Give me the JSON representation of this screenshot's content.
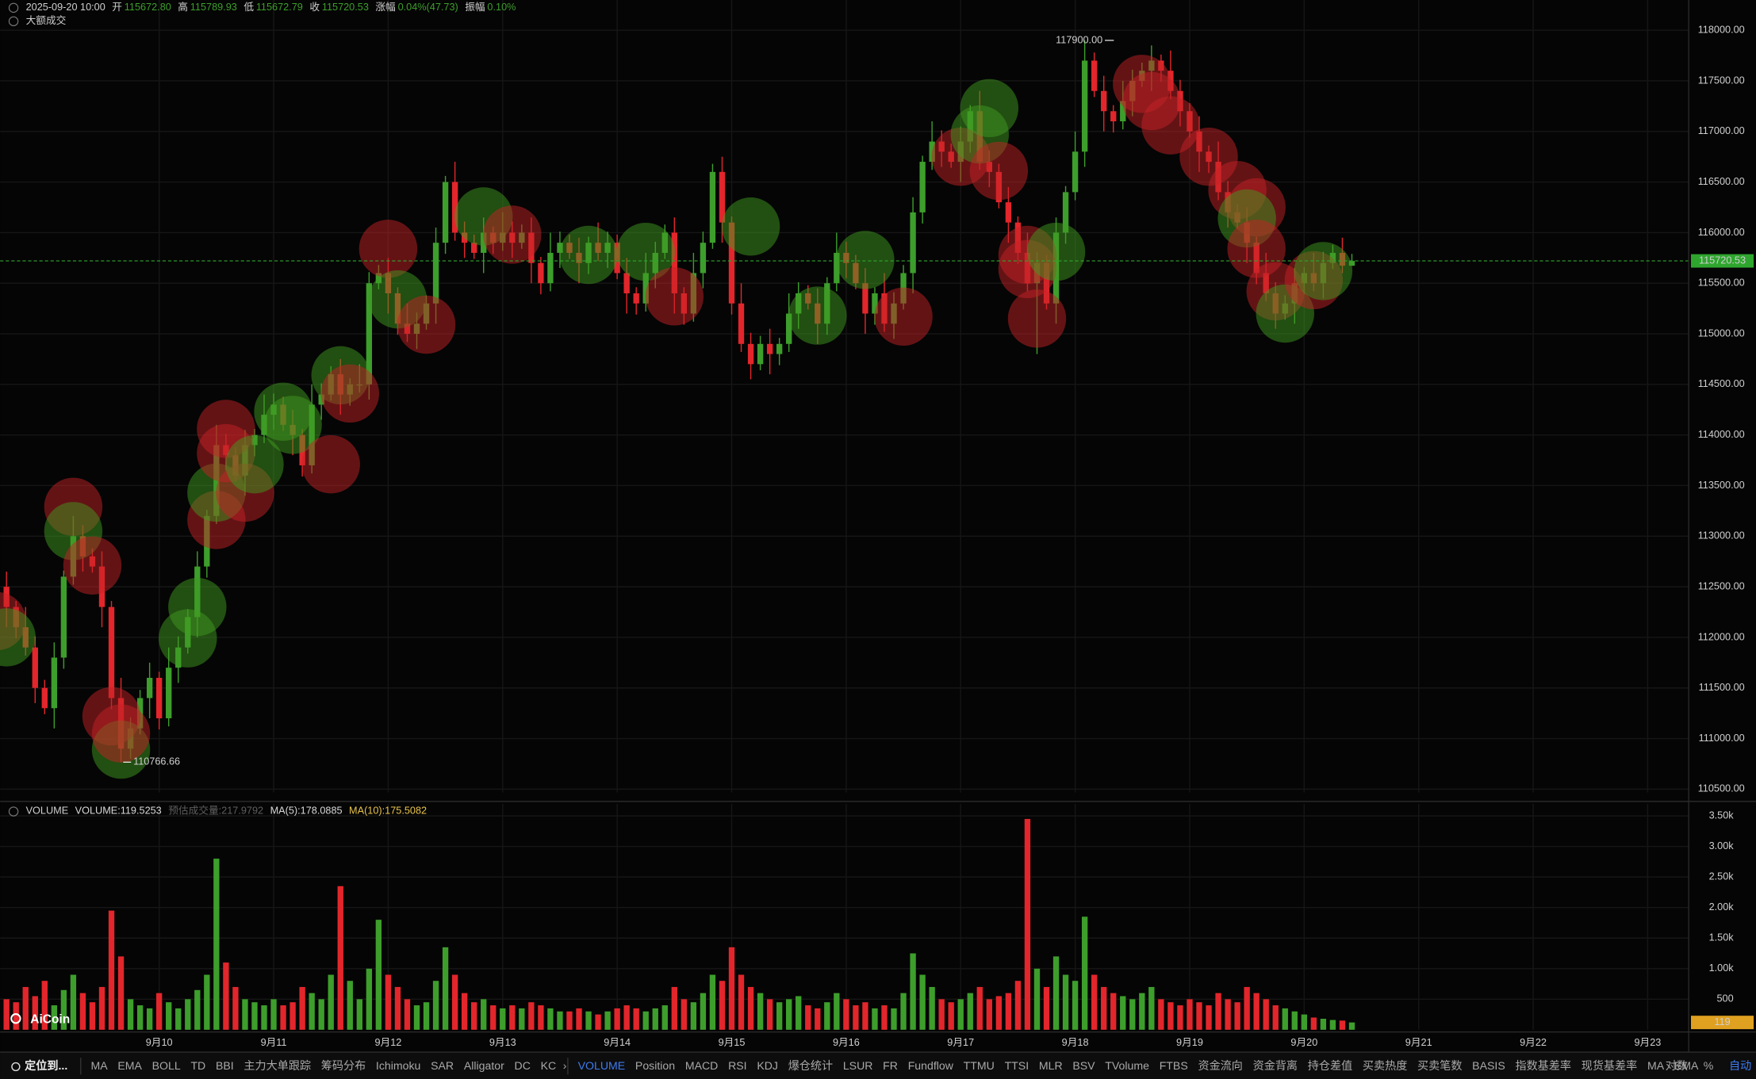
{
  "chart_data": {
    "type": "candlestick",
    "header": {
      "time": "2025-09-20 10:00",
      "items": [
        {
          "label": "开",
          "value": "115672.80"
        },
        {
          "label": "高",
          "value": "115789.93"
        },
        {
          "label": "低",
          "value": "115672.79"
        },
        {
          "label": "收",
          "value": "115720.53"
        },
        {
          "label": "涨幅",
          "value": "0.04%(47.73)"
        },
        {
          "label": "振幅",
          "value": "0.10%"
        }
      ]
    },
    "subheader": "大额成交",
    "up_color": "#3d9e2c",
    "down_color": "#e2262b",
    "grid": true,
    "last_price_color": "#2ea62e",
    "xlim": [
      0.33,
      177.3
    ],
    "xticks": [
      {
        "value": 17,
        "label": "9月10"
      },
      {
        "value": 29,
        "label": "9月11"
      },
      {
        "value": 41,
        "label": "9月12"
      },
      {
        "value": 53,
        "label": "9月13"
      },
      {
        "value": 65,
        "label": "9月14"
      },
      {
        "value": 77,
        "label": "9月15"
      },
      {
        "value": 89,
        "label": "9月16"
      },
      {
        "value": 101,
        "label": "9月17"
      },
      {
        "value": 113,
        "label": "9月18"
      },
      {
        "value": 125,
        "label": "9月19"
      },
      {
        "value": 137,
        "label": "9月20"
      },
      {
        "value": 149,
        "label": "9月21"
      },
      {
        "value": 161,
        "label": "9月22"
      },
      {
        "value": 173,
        "label": "9月23"
      }
    ],
    "ylim": [
      110467,
      118299
    ],
    "yticks": [
      {
        "value": 110500,
        "label": "110500.00"
      },
      {
        "value": 111000,
        "label": "111000.00"
      },
      {
        "value": 111500,
        "label": "111500.00"
      },
      {
        "value": 112000,
        "label": "112000.00"
      },
      {
        "value": 112500,
        "label": "112500.00"
      },
      {
        "value": 113000,
        "label": "113000.00"
      },
      {
        "value": 113500,
        "label": "113500.00"
      },
      {
        "value": 114000,
        "label": "114000.00"
      },
      {
        "value": 114500,
        "label": "114500.00"
      },
      {
        "value": 115000,
        "label": "115000.00"
      },
      {
        "value": 115500,
        "label": "115500.00"
      },
      {
        "value": 116000,
        "label": "116000.00"
      },
      {
        "value": 116500,
        "label": "116500.00"
      },
      {
        "value": 117000,
        "label": "117000.00"
      },
      {
        "value": 117500,
        "label": "117500.00"
      },
      {
        "value": 118000,
        "label": "118000.00"
      }
    ],
    "last_price_label": "115720.53",
    "max_label": "117900.00",
    "min_label": "110766.66",
    "open": [
      112600,
      112500,
      112300,
      112100,
      111900,
      111500,
      111300,
      111800,
      112600,
      113000,
      112800,
      112700,
      112300,
      111400,
      110900,
      111100,
      111400,
      111600,
      111200,
      111700,
      111900,
      112200,
      112700,
      113200,
      113900,
      113800,
      113600,
      113900,
      114000,
      114200,
      114300,
      114100,
      114000,
      113700,
      114300,
      114400,
      114600,
      114400,
      114500,
      114500,
      115500,
      115600,
      115400,
      115100,
      115000,
      115100,
      115300,
      115900,
      116500,
      116000,
      115900,
      115800,
      116000,
      115900,
      116000,
      115900,
      116000,
      115700,
      115500,
      115800,
      115900,
      115800,
      115700,
      115900,
      115800,
      115900,
      115600,
      115400,
      115300,
      115600,
      115800,
      116000,
      115400,
      115200,
      115600,
      115900,
      116600,
      116100,
      115300,
      114900,
      114700,
      114900,
      114800,
      114900,
      115200,
      115400,
      115300,
      115100,
      115500,
      115800,
      115700,
      115500,
      115200,
      115400,
      115100,
      115300,
      115600,
      116200,
      116700,
      116900,
      116800,
      116700,
      116900,
      117200,
      116700,
      116600,
      116300,
      116100,
      115800,
      115500,
      115700,
      115300,
      116000,
      116400,
      116800,
      117700,
      117400,
      117200,
      117100,
      117300,
      117500,
      117600,
      117700,
      117600,
      117400,
      117200,
      117000,
      116800,
      116700,
      116400,
      116200,
      116100,
      115900,
      115600,
      115400,
      115200,
      115300,
      115500,
      115600,
      115500,
      115700,
      115800,
      115672.8
    ],
    "high": [
      112680,
      112650,
      112360,
      112300,
      112010,
      111580,
      111950,
      112660,
      113200,
      113110,
      112880,
      112850,
      112360,
      111600,
      111210,
      111480,
      111750,
      111660,
      111900,
      112010,
      112280,
      112850,
      113260,
      114100,
      114010,
      113880,
      114050,
      114060,
      114400,
      114410,
      114380,
      114250,
      114060,
      114500,
      114510,
      114680,
      114750,
      114560,
      114700,
      115610,
      115680,
      115750,
      115460,
      115300,
      115210,
      115380,
      116050,
      116560,
      116700,
      116110,
      115980,
      116150,
      116060,
      116200,
      116110,
      116080,
      116150,
      115760,
      116000,
      116010,
      115980,
      115950,
      115960,
      116100,
      116010,
      115980,
      115750,
      115460,
      115800,
      115910,
      116080,
      116150,
      115460,
      115800,
      116010,
      116680,
      116750,
      116160,
      115500,
      115010,
      114980,
      115050,
      114960,
      115400,
      115510,
      115480,
      115450,
      115560,
      116000,
      115910,
      115780,
      115650,
      115460,
      115600,
      115410,
      115680,
      116350,
      116760,
      117100,
      117010,
      116880,
      117050,
      117260,
      117400,
      116810,
      116680,
      116450,
      116160,
      116000,
      115810,
      115780,
      116150,
      116460,
      117000,
      117900,
      117780,
      117550,
      117260,
      117500,
      117610,
      117680,
      117850,
      117760,
      117800,
      117510,
      117280,
      117150,
      116860,
      116900,
      116510,
      116280,
      116250,
      115960,
      115800,
      115510,
      115380,
      115650,
      115660,
      115800,
      115810,
      115880,
      115950,
      115789.93
    ],
    "low": [
      112440,
      112100,
      111990,
      111820,
      111350,
      111240,
      111100,
      111690,
      112520,
      112650,
      112640,
      112100,
      111290,
      110766.66,
      110800,
      111040,
      111200,
      111090,
      111120,
      111550,
      111840,
      112000,
      112590,
      113120,
      113650,
      113540,
      113400,
      113790,
      113920,
      114050,
      114040,
      113800,
      113590,
      113620,
      114150,
      114340,
      114200,
      114290,
      114420,
      114350,
      115440,
      115200,
      114990,
      114920,
      114850,
      115040,
      115100,
      115790,
      115920,
      115750,
      115740,
      115600,
      115790,
      115820,
      115750,
      115840,
      115500,
      115390,
      115420,
      115650,
      115740,
      115500,
      115590,
      115720,
      115650,
      115540,
      115200,
      115190,
      115220,
      115450,
      115740,
      115200,
      115090,
      115120,
      115450,
      115840,
      115900,
      115190,
      114820,
      114550,
      114640,
      114600,
      114690,
      114820,
      115050,
      115240,
      114900,
      114990,
      115420,
      115550,
      115440,
      115000,
      115090,
      115020,
      114950,
      115240,
      115400,
      116090,
      116620,
      116650,
      116640,
      116500,
      116790,
      116620,
      116450,
      116240,
      115900,
      115690,
      115420,
      114800,
      115240,
      115100,
      115890,
      116320,
      116650,
      117340,
      117000,
      116990,
      117020,
      117150,
      117440,
      117400,
      117490,
      117320,
      117050,
      116940,
      116600,
      116590,
      116320,
      116050,
      116040,
      115700,
      115490,
      115320,
      115050,
      115140,
      115100,
      115390,
      115420,
      115350,
      115640,
      115600,
      115672.79
    ],
    "close": [
      112500,
      112300,
      112100,
      111900,
      111500,
      111300,
      111800,
      112600,
      113000,
      112800,
      112700,
      112300,
      111400,
      110900,
      111100,
      111400,
      111600,
      111200,
      111700,
      111900,
      112200,
      112700,
      113200,
      113900,
      113800,
      113600,
      113900,
      114000,
      114200,
      114300,
      114100,
      114000,
      113700,
      114300,
      114400,
      114600,
      114400,
      114500,
      114500,
      115500,
      115600,
      115400,
      115100,
      115000,
      115100,
      115300,
      115900,
      116500,
      116000,
      115900,
      115800,
      116000,
      115900,
      116000,
      115900,
      116000,
      115700,
      115500,
      115800,
      115900,
      115800,
      115700,
      115900,
      115800,
      115900,
      115600,
      115400,
      115300,
      115600,
      115800,
      116000,
      115400,
      115200,
      115600,
      115900,
      116600,
      116100,
      115300,
      114900,
      114700,
      114900,
      114800,
      114900,
      115200,
      115400,
      115300,
      115100,
      115500,
      115800,
      115700,
      115500,
      115200,
      115400,
      115100,
      115300,
      115600,
      116200,
      116700,
      116900,
      116800,
      116700,
      116900,
      117200,
      116700,
      116600,
      116300,
      116100,
      115800,
      115500,
      115700,
      115300,
      116000,
      116400,
      116800,
      117700,
      117400,
      117200,
      117100,
      117300,
      117500,
      117600,
      117700,
      117600,
      117400,
      117200,
      117000,
      116800,
      116700,
      116400,
      116200,
      116100,
      115900,
      115600,
      115400,
      115200,
      115300,
      115500,
      115600,
      115500,
      115700,
      115800,
      115672.8,
      115720.53
    ],
    "bubbles": {
      "buy_color": "#3f9a1f",
      "sell_color": "#c42226",
      "x": [
        0,
        1,
        8,
        8,
        10,
        12,
        13,
        13,
        20,
        21,
        23,
        23,
        24,
        26,
        24,
        27,
        30,
        31,
        35,
        36,
        37,
        41,
        42,
        45,
        51,
        54,
        62,
        68,
        71,
        79,
        86,
        91,
        95,
        101,
        104,
        103,
        105,
        108,
        108,
        111,
        109,
        120,
        121,
        123,
        127,
        130,
        132,
        131,
        132,
        134,
        135,
        138,
        139
      ],
      "price": [
        112160,
        112000,
        113290,
        113050,
        112710,
        111220,
        110890,
        111050,
        111990,
        112300,
        113160,
        113430,
        114060,
        113430,
        113820,
        113710,
        114230,
        114100,
        113710,
        114590,
        114410,
        115840,
        115340,
        115090,
        116160,
        115980,
        115780,
        115810,
        115370,
        116060,
        115180,
        115730,
        115170,
        116750,
        117230,
        116970,
        116610,
        115780,
        115640,
        115810,
        115150,
        117470,
        117300,
        117060,
        116750,
        116420,
        116250,
        116140,
        115840,
        115420,
        115200,
        115530,
        115620
      ],
      "side": [
        "sell",
        "buy",
        "sell",
        "buy",
        "sell",
        "sell",
        "buy",
        "sell",
        "buy",
        "buy",
        "sell",
        "buy",
        "sell",
        "sell",
        "sell",
        "buy",
        "buy",
        "buy",
        "sell",
        "buy",
        "sell",
        "sell",
        "buy",
        "sell",
        "buy",
        "sell",
        "buy",
        "buy",
        "sell",
        "buy",
        "buy",
        "buy",
        "sell",
        "sell",
        "buy",
        "buy",
        "sell",
        "sell",
        "sell",
        "buy",
        "sell",
        "sell",
        "sell",
        "sell",
        "sell",
        "sell",
        "sell",
        "buy",
        "sell",
        "sell",
        "buy",
        "sell",
        "buy"
      ]
    },
    "volume": {
      "title": "VOLUME",
      "items": [
        {
          "text": "VOLUME:119.5253",
          "color": "#d8d8d8"
        },
        {
          "text": "预估成交量:217.9792",
          "color": "#5e5e5e"
        },
        {
          "text": "MA(5):178.0885",
          "color": "#d8d8d8"
        },
        {
          "text": "MA(10):175.5082",
          "color": "#e8c34a"
        }
      ],
      "ylim": [
        0,
        3700
      ],
      "yticks": [
        500,
        {
          "value": 1000,
          "label": "1.00k"
        },
        {
          "value": 1500,
          "label": "1.50k"
        },
        {
          "value": 2000,
          "label": "2.00k"
        },
        {
          "value": 2500,
          "label": "2.50k"
        },
        {
          "value": 3000,
          "label": "3.00k"
        },
        {
          "value": 3500,
          "label": "3.50k"
        }
      ],
      "last_label": "119",
      "last_color": "#e0a020",
      "values": [
        600,
        500,
        450,
        700,
        550,
        800,
        400,
        650,
        900,
        600,
        450,
        700,
        1950,
        1200,
        500,
        400,
        350,
        600,
        450,
        350,
        500,
        650,
        900,
        2800,
        1100,
        700,
        500,
        450,
        400,
        500,
        400,
        450,
        700,
        600,
        500,
        900,
        2350,
        800,
        500,
        1000,
        1800,
        900,
        700,
        500,
        400,
        450,
        800,
        1350,
        900,
        600,
        450,
        500,
        400,
        350,
        400,
        350,
        450,
        400,
        350,
        300,
        300,
        350,
        300,
        250,
        300,
        350,
        400,
        350,
        300,
        350,
        400,
        700,
        500,
        450,
        600,
        900,
        800,
        1350,
        900,
        700,
        600,
        500,
        450,
        500,
        550,
        400,
        350,
        450,
        600,
        500,
        400,
        450,
        350,
        400,
        350,
        600,
        1250,
        900,
        700,
        500,
        450,
        500,
        600,
        700,
        500,
        550,
        600,
        800,
        3450,
        1000,
        700,
        1200,
        900,
        800,
        1850,
        900,
        700,
        600,
        550,
        500,
        600,
        700,
        500,
        450,
        400,
        500,
        450,
        400,
        600,
        500,
        450,
        700,
        600,
        500,
        400,
        350,
        300,
        250,
        200,
        180,
        160,
        150,
        119.5253
      ]
    }
  },
  "toolbar": {
    "locate": "定位到...",
    "left": [
      "MA",
      "EMA",
      "BOLL",
      "TD",
      "BBI",
      "主力大单跟踪",
      "筹码分布",
      "Ichimoku",
      "SAR",
      "Alligator",
      "DC",
      "KC"
    ],
    "right": [
      "VOLUME",
      "Position",
      "MACD",
      "RSI",
      "KDJ",
      "爆仓统计",
      "LSUR",
      "FR",
      "Fundflow",
      "TTMU",
      "TTSI",
      "MLR",
      "BSV",
      "TVolume",
      "FTBS",
      "资金流向",
      "资金背离",
      "持仓差值",
      "买卖热度",
      "买卖笔数",
      "BASIS",
      "指数基差率",
      "现货基差率",
      "MA",
      "EMA"
    ],
    "active": 0,
    "end": [
      "对数",
      "%",
      "自动"
    ],
    "end_active": 2
  },
  "logo": "AiCoin"
}
